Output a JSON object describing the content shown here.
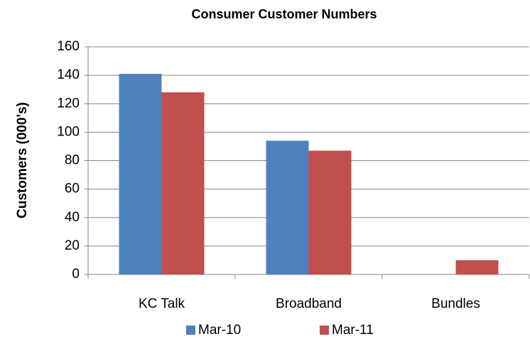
{
  "chart_data": {
    "type": "bar",
    "title": "Consumer Customer Numbers",
    "y_label": "Customers (000's)",
    "categories": [
      "KC Talk",
      "Broadband",
      "Bundles"
    ],
    "series": [
      {
        "name": "Mar-10",
        "color": "#4f81bd",
        "values": [
          141,
          94,
          0
        ]
      },
      {
        "name": "Mar-11",
        "color": "#c0504d",
        "values": [
          128,
          87,
          10
        ]
      }
    ],
    "ylim": [
      0,
      160
    ],
    "yticks": [
      0,
      20,
      40,
      60,
      80,
      100,
      120,
      140,
      160
    ],
    "grid": true,
    "legend": "bottom"
  }
}
